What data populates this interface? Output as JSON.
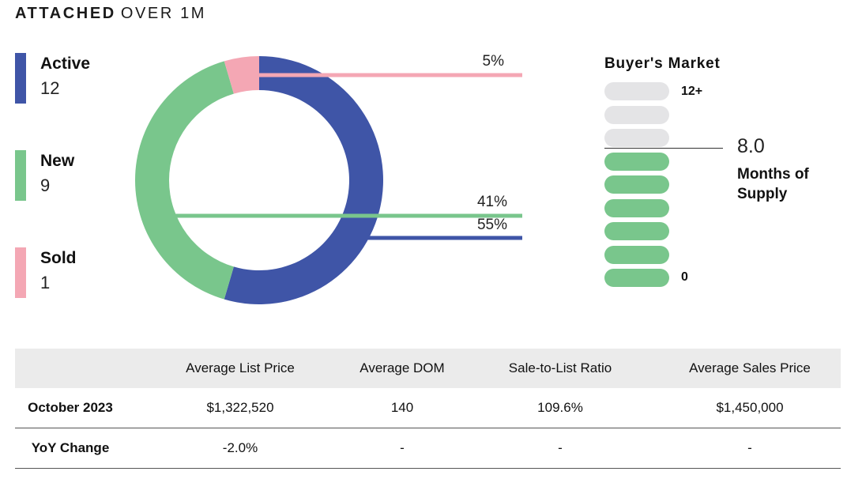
{
  "header": {
    "title_bold": "ATTACHED",
    "title_light": "OVER 1M"
  },
  "chart_data": {
    "type": "pie",
    "style": "donut",
    "categories": [
      "Active",
      "New",
      "Sold"
    ],
    "values": [
      12,
      9,
      1
    ],
    "percent_labels": [
      "55%",
      "41%",
      "5%"
    ],
    "colors": [
      "#3f55a7",
      "#79c68c",
      "#f4a7b4"
    ]
  },
  "legend": [
    {
      "label": "Active",
      "value": "12",
      "color": "#3f55a7"
    },
    {
      "label": "New",
      "value": "9",
      "color": "#79c68c"
    },
    {
      "label": "Sold",
      "value": "1",
      "color": "#f4a7b4"
    }
  ],
  "market": {
    "title": "Buyer's Market",
    "scale_top": "12+",
    "scale_bottom": "0",
    "months_of_supply": "8.0",
    "months_label": "Months of Supply",
    "filled_color": "#79c68c",
    "empty_color": "#e4e4e6",
    "pills": [
      {
        "state": "empty"
      },
      {
        "state": "empty"
      },
      {
        "state": "empty"
      },
      {
        "state": "filled"
      },
      {
        "state": "filled"
      },
      {
        "state": "filled"
      },
      {
        "state": "filled"
      },
      {
        "state": "filled"
      },
      {
        "state": "filled"
      }
    ]
  },
  "table": {
    "headers": [
      "",
      "Average List Price",
      "Average DOM",
      "Sale-to-List Ratio",
      "Average Sales Price"
    ],
    "rows": [
      [
        "October 2023",
        "$1,322,520",
        "140",
        "109.6%",
        "$1,450,000"
      ],
      [
        "YoY Change",
        "-2.0%",
        "-",
        "-",
        "-"
      ]
    ]
  }
}
